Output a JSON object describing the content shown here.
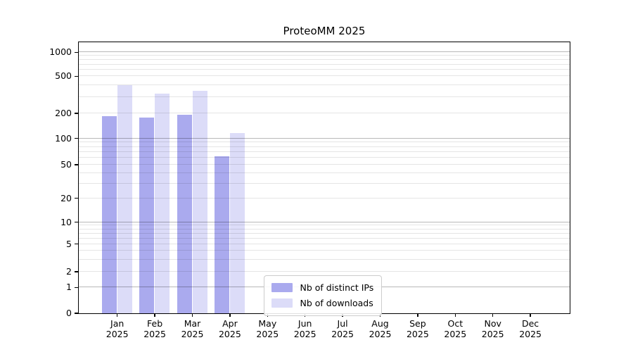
{
  "title": "ProteoMM 2025",
  "chart_data": {
    "type": "bar",
    "title": "ProteoMM 2025",
    "scale": "symlog",
    "grid": true,
    "legend_position": "lower center",
    "year": "2025",
    "months": [
      "Jan",
      "Feb",
      "Mar",
      "Apr",
      "May",
      "Jun",
      "Jul",
      "Aug",
      "Sep",
      "Oct",
      "Nov",
      "Dec"
    ],
    "categories": [
      "Jan 2025",
      "Feb 2025",
      "Mar 2025",
      "Apr 2025",
      "May 2025",
      "Jun 2025",
      "Jul 2025",
      "Aug 2025",
      "Sep 2025",
      "Oct 2025",
      "Nov 2025",
      "Dec 2025"
    ],
    "y_ticks": [
      0,
      1,
      2,
      5,
      10,
      20,
      50,
      100,
      200,
      500,
      1000
    ],
    "ylim": [
      0,
      1250
    ],
    "series": [
      {
        "name": "Nb of distinct IPs",
        "color": "#aaaaee",
        "values": [
          185,
          177,
          190,
          62,
          null,
          null,
          null,
          null,
          null,
          null,
          null,
          null
        ]
      },
      {
        "name": "Nb of downloads",
        "color": "#dcdcf8",
        "values": [
          400,
          320,
          345,
          114,
          null,
          null,
          null,
          null,
          null,
          null,
          null,
          null
        ]
      }
    ],
    "colors": {
      "bar_distinct_ips": "#aaaaee",
      "bar_downloads": "#dcdcf8",
      "major_grid": "#b8b8b8",
      "minor_grid": "#e6e6e6",
      "axis": "#000000",
      "text": "#000000",
      "background": "#ffffff"
    }
  }
}
